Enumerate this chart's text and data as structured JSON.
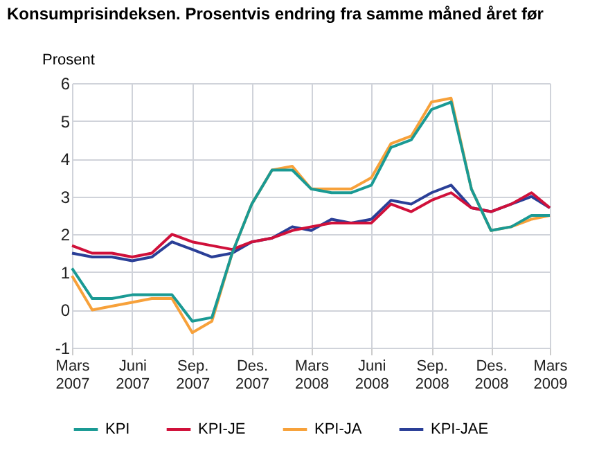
{
  "chart_data": {
    "type": "line",
    "title": "Konsumprisindeksen. Prosentvis endring fra samme måned året før",
    "ylabel": "Prosent",
    "x": [
      "2007-03",
      "2007-04",
      "2007-05",
      "2007-06",
      "2007-07",
      "2007-08",
      "2007-09",
      "2007-10",
      "2007-11",
      "2007-12",
      "2008-01",
      "2008-02",
      "2008-03",
      "2008-04",
      "2008-05",
      "2008-06",
      "2008-07",
      "2008-08",
      "2008-09",
      "2008-10",
      "2008-11",
      "2008-12",
      "2009-01",
      "2009-02",
      "2009-03"
    ],
    "series": [
      {
        "name": "KPI",
        "color": "#1a9a94",
        "values": [
          1.1,
          0.3,
          0.3,
          0.4,
          0.4,
          0.4,
          -0.3,
          -0.2,
          1.5,
          2.8,
          3.7,
          3.7,
          3.2,
          3.1,
          3.1,
          3.3,
          4.3,
          4.5,
          5.3,
          5.5,
          3.2,
          2.1,
          2.2,
          2.5,
          2.5
        ]
      },
      {
        "name": "KPI-JE",
        "color": "#d0103a",
        "values": [
          1.7,
          1.5,
          1.5,
          1.4,
          1.5,
          2.0,
          1.8,
          1.7,
          1.6,
          1.8,
          1.9,
          2.1,
          2.2,
          2.3,
          2.3,
          2.3,
          2.8,
          2.6,
          2.9,
          3.1,
          2.7,
          2.6,
          2.8,
          3.1,
          2.7
        ]
      },
      {
        "name": "KPI-JA",
        "color": "#f7a13a",
        "values": [
          0.9,
          0.0,
          0.1,
          0.2,
          0.3,
          0.3,
          -0.6,
          -0.3,
          1.5,
          2.8,
          3.7,
          3.8,
          3.2,
          3.2,
          3.2,
          3.5,
          4.4,
          4.6,
          5.5,
          5.6,
          3.2,
          2.1,
          2.2,
          2.4,
          2.5
        ]
      },
      {
        "name": "KPI-JAE",
        "color": "#2a3f97",
        "values": [
          1.5,
          1.4,
          1.4,
          1.3,
          1.4,
          1.8,
          1.6,
          1.4,
          1.5,
          1.8,
          1.9,
          2.2,
          2.1,
          2.4,
          2.3,
          2.4,
          2.9,
          2.8,
          3.1,
          3.3,
          2.7,
          2.6,
          2.8,
          3.0,
          2.7
        ]
      }
    ],
    "xlim": [
      "2007-03",
      "2009-03"
    ],
    "xticks": [
      {
        "value": "2007-03",
        "label": "Mars 2007"
      },
      {
        "value": "2007-06",
        "label": "Juni 2007"
      },
      {
        "value": "2007-09",
        "label": "Sep. 2007"
      },
      {
        "value": "2007-12",
        "label": "Des. 2007"
      },
      {
        "value": "2008-03",
        "label": "Mars 2008"
      },
      {
        "value": "2008-06",
        "label": "Juni 2008"
      },
      {
        "value": "2008-09",
        "label": "Sep. 2008"
      },
      {
        "value": "2008-12",
        "label": "Des. 2008"
      },
      {
        "value": "2009-03",
        "label": "Mars 2009"
      }
    ],
    "ylim": [
      -1,
      6
    ],
    "yticks": [
      -1,
      0,
      1,
      2,
      3,
      4,
      5,
      6
    ],
    "grid": true,
    "legend": "bottom",
    "marker": "none",
    "line_style": "solid"
  }
}
